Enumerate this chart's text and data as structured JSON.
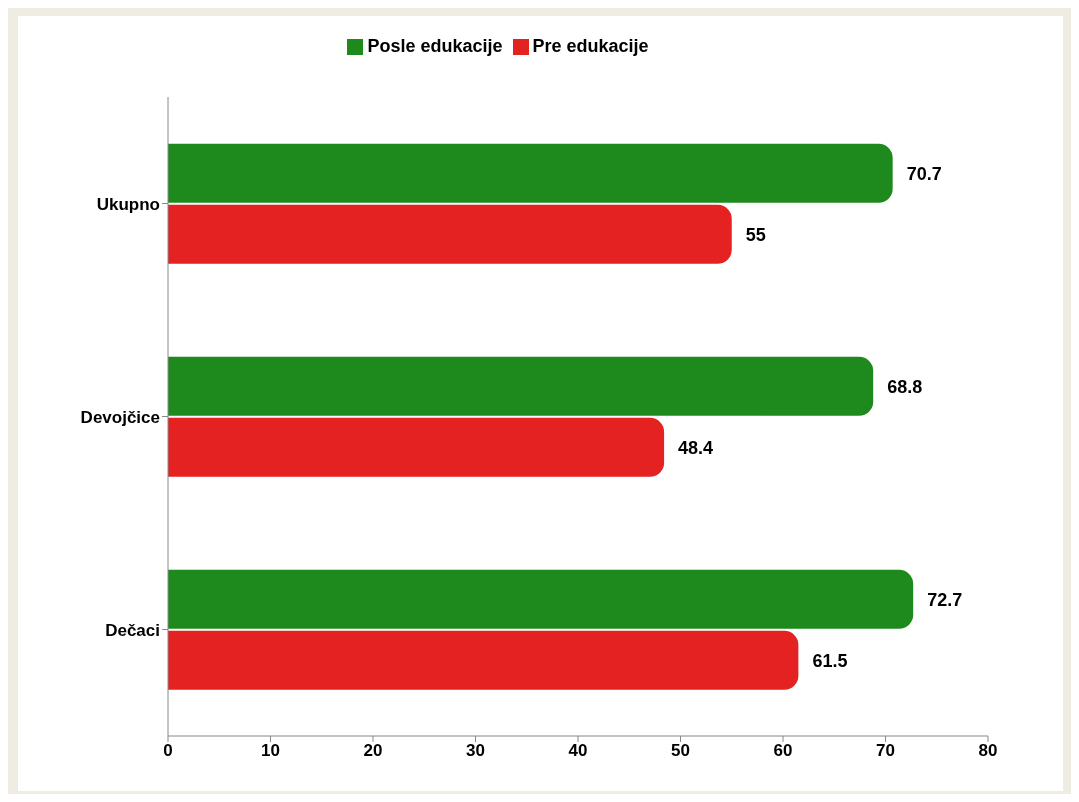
{
  "chart_data": {
    "type": "bar",
    "orientation": "horizontal",
    "categories": [
      "Ukupno",
      "Devojčice",
      "Dečaci"
    ],
    "series": [
      {
        "name": "Posle edukacije",
        "color": "#1e8a1e",
        "values": [
          70.7,
          68.8,
          72.7
        ]
      },
      {
        "name": "Pre edukacije",
        "color": "#e52222",
        "values": [
          55,
          48.4,
          61.5
        ]
      }
    ],
    "xlim": [
      0,
      80
    ],
    "xticks": [
      0,
      10,
      20,
      30,
      40,
      50,
      60,
      70,
      80
    ],
    "data_labels": true,
    "legend": "top",
    "grid": false
  }
}
